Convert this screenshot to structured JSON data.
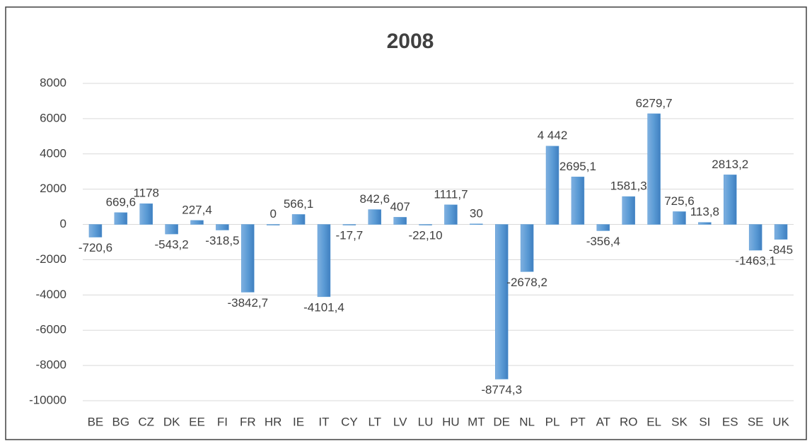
{
  "chart_data": {
    "type": "bar",
    "title": "2008",
    "categories": [
      "BE",
      "BG",
      "CZ",
      "DK",
      "EE",
      "FI",
      "FR",
      "HR",
      "IE",
      "IT",
      "CY",
      "LT",
      "LV",
      "LU",
      "HU",
      "MT",
      "DE",
      "NL",
      "PL",
      "PT",
      "AT",
      "RO",
      "EL",
      "SK",
      "SI",
      "ES",
      "SE",
      "UK"
    ],
    "values": [
      -720.6,
      669.6,
      1178,
      -543.2,
      227.4,
      -318.5,
      -3842.7,
      0,
      566.1,
      -4101.4,
      -17.7,
      842.6,
      407,
      -22.1,
      1111.7,
      30,
      -8774.3,
      -2678.2,
      4442,
      2695.1,
      -356.4,
      1581.3,
      6279.7,
      725.6,
      113.8,
      2813.2,
      -1463.1,
      -845
    ],
    "value_labels": [
      "-720,6",
      "669,6",
      "1178",
      "-543,2",
      "227,4",
      "-318,5",
      "-3842,7",
      "0",
      "566,1",
      "-4101,4",
      "-17,7",
      "842,6",
      "407",
      "-22,10",
      "1111,7",
      "30",
      "-8774,3",
      "-2678,2",
      "4 442",
      "2695,1",
      "-356,4",
      "1581,3",
      "6279,7",
      "725,6",
      "113,8",
      "2813,2",
      "-1463,1",
      "-845"
    ],
    "color": "#5b9bd5",
    "ylim": [
      -10000,
      8000
    ],
    "yticks": [
      -10000,
      -8000,
      -6000,
      -4000,
      -2000,
      0,
      2000,
      4000,
      6000,
      8000
    ],
    "grid": true
  }
}
